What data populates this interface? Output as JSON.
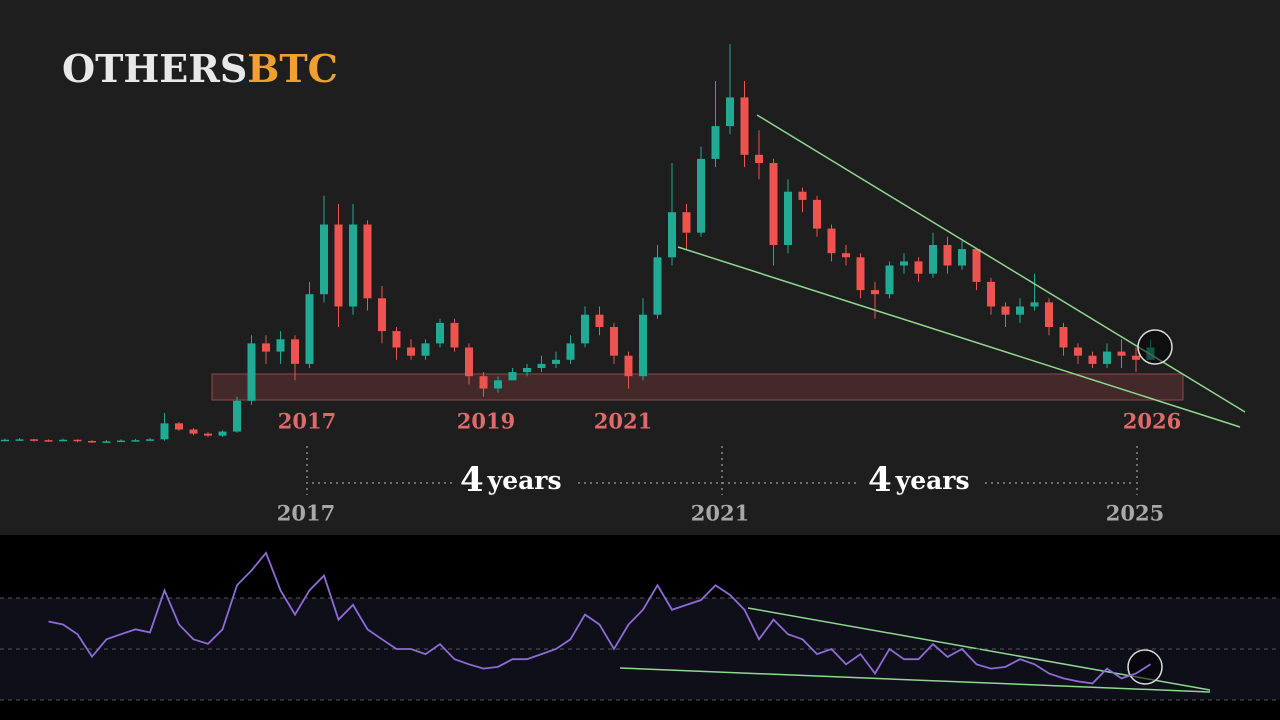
{
  "chart_data": [
    {
      "type": "candlestick",
      "title_main": "OTHERS",
      "title_accent": "BTC",
      "up_color": "#22ab94",
      "down_color": "#ef5350",
      "ylim": [
        0,
        100
      ],
      "open": [
        2.5,
        2.5,
        2.6,
        2.4,
        2.3,
        2.5,
        2.2,
        2.0,
        2.1,
        2.3,
        2.4,
        2.6,
        6.5,
        5,
        4,
        3.5,
        4.5,
        12,
        26,
        24,
        27,
        21,
        38,
        55,
        35,
        55,
        37,
        29,
        25,
        23,
        26,
        31,
        25,
        18,
        15,
        17,
        19,
        20,
        21,
        22,
        26,
        33,
        30,
        23,
        18,
        33,
        47,
        58,
        53,
        71,
        79,
        86,
        72,
        70,
        50,
        63,
        61,
        54,
        48,
        47,
        39,
        38,
        45,
        46,
        43,
        50,
        45,
        49,
        41,
        35,
        33,
        35,
        36,
        30,
        25,
        23,
        21,
        24,
        23,
        22
      ],
      "close": [
        2.5,
        2.6,
        2.4,
        2.3,
        2.5,
        2.2,
        2.0,
        2.1,
        2.3,
        2.4,
        2.6,
        6.5,
        5,
        4,
        3.5,
        4.5,
        12,
        26,
        24,
        27,
        21,
        38,
        55,
        35,
        55,
        37,
        29,
        25,
        23,
        26,
        31,
        25,
        18,
        15,
        17,
        19,
        20,
        21,
        22,
        26,
        33,
        30,
        23,
        18,
        33,
        47,
        58,
        53,
        71,
        79,
        86,
        72,
        70,
        50,
        63,
        61,
        54,
        48,
        47,
        39,
        38,
        45,
        46,
        43,
        50,
        45,
        49,
        41,
        35,
        33,
        35,
        36,
        30,
        25,
        23,
        21,
        24,
        23,
        22,
        25
      ],
      "high": [
        2.8,
        2.9,
        2.7,
        2.6,
        2.8,
        2.6,
        2.4,
        2.4,
        2.6,
        2.7,
        2.9,
        9,
        6.8,
        5.3,
        4.3,
        4.8,
        13,
        28,
        28,
        29,
        28,
        41,
        62,
        60,
        60,
        56,
        40,
        30,
        27,
        27,
        32,
        32,
        26,
        19,
        18,
        20,
        21,
        23,
        24,
        28,
        35,
        35,
        31,
        24,
        37,
        50,
        70,
        60,
        74,
        90,
        99,
        90,
        78,
        71,
        66,
        64,
        62,
        55,
        50,
        48,
        41,
        46,
        48,
        47,
        53,
        52,
        51,
        49,
        42,
        36,
        37,
        43,
        37,
        31,
        26,
        24,
        26,
        27,
        25,
        27
      ],
      "low": [
        2.2,
        2.3,
        2.1,
        2.0,
        2.1,
        1.9,
        1.7,
        1.8,
        2.0,
        2.1,
        2.2,
        2.3,
        4.7,
        3.6,
        3.1,
        3.2,
        4.2,
        11,
        21,
        21,
        17,
        20,
        36,
        30,
        33,
        34,
        26,
        22,
        22,
        22,
        25,
        24,
        16,
        13,
        14,
        17,
        18,
        19,
        20,
        21,
        25,
        28,
        21,
        15,
        17,
        32,
        45,
        49,
        52,
        69,
        77,
        69,
        66,
        45,
        48,
        58,
        52,
        46,
        45,
        37,
        32,
        37,
        43,
        41,
        42,
        43,
        44,
        39,
        33,
        30,
        31,
        34,
        28,
        23,
        21,
        20,
        20,
        20,
        19,
        22
      ],
      "annotations": {
        "cycle_years": [
          "2017",
          "2019",
          "2021",
          "2026"
        ],
        "cycle_ends": [
          "2017",
          "2021",
          "2025"
        ],
        "intervals": [
          {
            "number": "4",
            "unit": "years"
          },
          {
            "number": "4",
            "unit": "years"
          }
        ]
      }
    },
    {
      "type": "line",
      "color": "#8e6bd6",
      "ylim": [
        30,
        90
      ],
      "levels": [
        30,
        50,
        70
      ],
      "values": [
        null,
        null,
        null,
        60.8,
        59.6,
        55.8,
        47,
        53.8,
        55.8,
        57.7,
        56.5,
        73,
        59.6,
        53.8,
        52,
        57.7,
        75,
        80.8,
        87.7,
        73,
        63.5,
        73,
        78.8,
        61.5,
        67.3,
        57.7,
        53.8,
        50,
        50,
        48,
        51.9,
        46,
        44,
        42.3,
        43,
        46,
        46,
        48,
        50,
        53.8,
        63.5,
        59.6,
        50,
        59.6,
        65.4,
        75,
        65.4,
        67.3,
        69.2,
        75,
        71.2,
        65.4,
        53.8,
        61.5,
        55.8,
        53.8,
        48,
        50,
        44,
        48,
        40.4,
        50,
        46,
        46,
        51.9,
        46.9,
        50,
        44,
        42.3,
        43,
        46,
        44,
        40.4,
        38.5,
        37.3,
        36.5,
        42.3,
        38.5,
        40.4,
        44
      ]
    }
  ]
}
